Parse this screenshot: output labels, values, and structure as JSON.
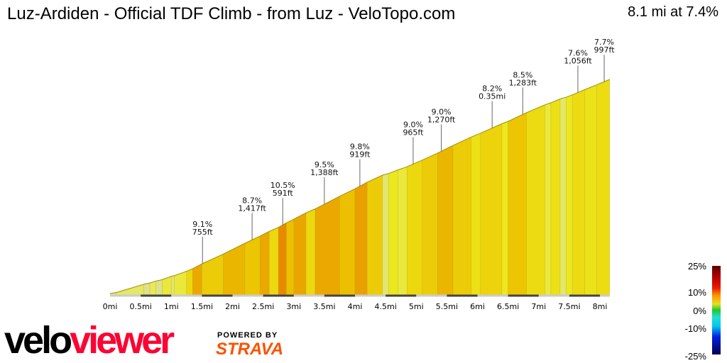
{
  "header": {
    "title": "Luz-Ardiden - Official TDF Climb - from Luz - VeloTopo.com",
    "summary": "8.1 mi at 7.4%"
  },
  "chart_data": {
    "type": "area",
    "title": "Luz-Ardiden - Official TDF Climb - from Luz - VeloTopo.com",
    "xlabel": "",
    "ylabel": "",
    "x_unit": "mi",
    "xlim": [
      0,
      8.16
    ],
    "x_ticks": [
      "0mi",
      "0.5mi",
      "1mi",
      "1.5mi",
      "2mi",
      "2.5mi",
      "3mi",
      "3.5mi",
      "4mi",
      "4.5mi",
      "5mi",
      "5.5mi",
      "6mi",
      "6.5mi",
      "7mi",
      "7.5mi",
      "8mi"
    ],
    "segments_grade_pct": [
      [
        0,
        0.1,
        3
      ],
      [
        0.1,
        0.55,
        5.5
      ],
      [
        0.55,
        0.65,
        4
      ],
      [
        0.65,
        0.75,
        6
      ],
      [
        0.75,
        0.85,
        4
      ],
      [
        0.85,
        1.0,
        6.5
      ],
      [
        1.0,
        1.05,
        5
      ],
      [
        1.05,
        1.25,
        6.5
      ],
      [
        1.25,
        1.35,
        8
      ],
      [
        1.35,
        1.5,
        9.5
      ],
      [
        1.5,
        1.85,
        8.5
      ],
      [
        1.85,
        2.2,
        9.2
      ],
      [
        2.2,
        2.45,
        8.8
      ],
      [
        2.45,
        2.6,
        9.5
      ],
      [
        2.6,
        2.75,
        8
      ],
      [
        2.75,
        2.88,
        10.5
      ],
      [
        2.88,
        3.0,
        9
      ],
      [
        3.0,
        3.2,
        9.6
      ],
      [
        3.2,
        3.35,
        8
      ],
      [
        3.35,
        3.75,
        9.5
      ],
      [
        3.75,
        4.0,
        9
      ],
      [
        4.0,
        4.2,
        10
      ],
      [
        4.2,
        4.45,
        8.5
      ],
      [
        4.45,
        4.55,
        5
      ],
      [
        4.55,
        4.7,
        7
      ],
      [
        4.7,
        4.85,
        6.5
      ],
      [
        4.85,
        5.1,
        8
      ],
      [
        5.1,
        5.35,
        8.5
      ],
      [
        5.35,
        5.6,
        9.2
      ],
      [
        5.6,
        5.9,
        8.5
      ],
      [
        5.9,
        6.05,
        7.5
      ],
      [
        6.05,
        6.4,
        8.2
      ],
      [
        6.4,
        6.5,
        7
      ],
      [
        6.5,
        6.8,
        8.8
      ],
      [
        6.8,
        7.1,
        7.8
      ],
      [
        7.1,
        7.2,
        6.5
      ],
      [
        7.2,
        7.35,
        7.5
      ],
      [
        7.35,
        7.45,
        5.5
      ],
      [
        7.45,
        7.55,
        7
      ],
      [
        7.55,
        7.75,
        7.8
      ],
      [
        7.75,
        7.95,
        7.4
      ],
      [
        7.95,
        8.16,
        7.7
      ]
    ],
    "callouts": [
      {
        "mi": 1.51,
        "grade": "9.1%",
        "length": "755ft"
      },
      {
        "mi": 2.32,
        "grade": "8.7%",
        "length": "1,417ft"
      },
      {
        "mi": 2.82,
        "grade": "10.5%",
        "length": "591ft"
      },
      {
        "mi": 3.5,
        "grade": "9.5%",
        "length": "1,388ft"
      },
      {
        "mi": 4.08,
        "grade": "9.8%",
        "length": "919ft"
      },
      {
        "mi": 4.95,
        "grade": "9.0%",
        "length": "965ft"
      },
      {
        "mi": 5.41,
        "grade": "9.0%",
        "length": "1,270ft"
      },
      {
        "mi": 6.24,
        "grade": "8.2%",
        "length": "0.35mi"
      },
      {
        "mi": 6.74,
        "grade": "8.5%",
        "length": "1,283ft"
      },
      {
        "mi": 7.64,
        "grade": "7.6%",
        "length": "1,056ft"
      },
      {
        "mi": 8.07,
        "grade": "7.7%",
        "length": "997ft"
      }
    ],
    "legend": {
      "labels": [
        "25%",
        "10%",
        "0%",
        "-10%",
        "-25%"
      ],
      "colors": [
        "#5a0000",
        "#e60000",
        "#ff8c00",
        "#e6e600",
        "#22c822",
        "#00e0e0",
        "#0050ff",
        "#000080",
        "#000040"
      ]
    },
    "grid": false
  },
  "branding": {
    "logo_a": "velo",
    "logo_b": "viewer",
    "powered": "POWERED BY",
    "strava": "STRAVA"
  }
}
